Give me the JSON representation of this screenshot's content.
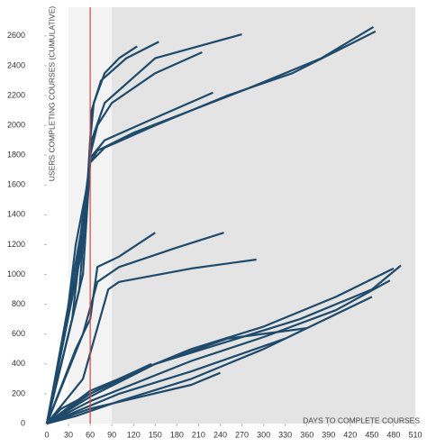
{
  "chart_data": {
    "type": "line",
    "y_label": "USERS COMPLETING COURSES (CUMULATIVE)",
    "x_label": "DAYS TO COMPLETE COURSES",
    "xlim": [
      0,
      510
    ],
    "ylim": [
      0,
      2780
    ],
    "xticks": [
      0,
      30,
      60,
      90,
      120,
      150,
      180,
      210,
      240,
      270,
      300,
      330,
      360,
      390,
      420,
      450,
      480,
      510
    ],
    "yticks": [
      0,
      200,
      400,
      600,
      800,
      1000,
      1200,
      1400,
      1600,
      1800,
      2000,
      2200,
      2400,
      2600
    ],
    "shaded_regions": [
      {
        "xlim": [
          30,
          90
        ],
        "color": "#f3f3f3"
      },
      {
        "xlim": [
          90,
          510
        ],
        "color": "#e4e4e4"
      }
    ],
    "reference_line": {
      "x": 60,
      "color": "#d9463b"
    },
    "line_color": "#1e4a6b",
    "series": [
      {
        "x": [
          0,
          30,
          55,
          60,
          65,
          80,
          100,
          125
        ],
        "values": [
          0,
          800,
          1500,
          1900,
          2150,
          2350,
          2450,
          2530
        ]
      },
      {
        "x": [
          0,
          40,
          58,
          62,
          75,
          110,
          155
        ],
        "values": [
          0,
          1000,
          1700,
          2100,
          2300,
          2450,
          2560
        ]
      },
      {
        "x": [
          0,
          45,
          60,
          70,
          90,
          150,
          215
        ],
        "values": [
          0,
          900,
          1800,
          2000,
          2150,
          2350,
          2490
        ]
      },
      {
        "x": [
          0,
          50,
          62,
          80,
          150,
          270
        ],
        "values": [
          0,
          1200,
          1900,
          2150,
          2450,
          2610
        ]
      },
      {
        "x": [
          0,
          35,
          60,
          70,
          120,
          200,
          280,
          380,
          452
        ],
        "values": [
          0,
          700,
          1750,
          1830,
          1950,
          2100,
          2250,
          2450,
          2660
        ]
      },
      {
        "x": [
          0,
          50,
          60,
          80,
          150,
          250,
          340,
          455
        ],
        "values": [
          0,
          1000,
          1750,
          1850,
          2000,
          2200,
          2350,
          2630
        ]
      },
      {
        "x": [
          0,
          45,
          60,
          80,
          150,
          230
        ],
        "values": [
          0,
          1100,
          1780,
          1900,
          2050,
          2220
        ]
      },
      {
        "x": [
          0,
          40,
          60,
          70,
          100,
          150
        ],
        "values": [
          0,
          500,
          700,
          1050,
          1120,
          1280
        ]
      },
      {
        "x": [
          0,
          50,
          70,
          100,
          180,
          245
        ],
        "values": [
          0,
          600,
          950,
          1050,
          1180,
          1280
        ]
      },
      {
        "x": [
          0,
          50,
          85,
          100,
          200,
          290
        ],
        "values": [
          0,
          300,
          900,
          950,
          1040,
          1100
        ]
      },
      {
        "x": [
          0,
          20,
          60,
          150,
          250,
          350,
          450,
          490
        ],
        "values": [
          0,
          100,
          200,
          400,
          550,
          700,
          900,
          1060
        ]
      },
      {
        "x": [
          0,
          60,
          200,
          300,
          400,
          480
        ],
        "values": [
          0,
          220,
          500,
          650,
          850,
          1040
        ]
      },
      {
        "x": [
          0,
          60,
          200,
          300,
          400,
          475
        ],
        "values": [
          0,
          150,
          420,
          580,
          760,
          960
        ]
      },
      {
        "x": [
          0,
          60,
          150,
          250,
          360
        ],
        "values": [
          0,
          180,
          400,
          570,
          640
        ]
      },
      {
        "x": [
          0,
          60,
          100,
          145
        ],
        "values": [
          0,
          200,
          300,
          400
        ]
      },
      {
        "x": [
          0,
          60,
          200,
          240
        ],
        "values": [
          0,
          100,
          260,
          340
        ]
      },
      {
        "x": [
          0,
          40,
          100,
          200,
          300,
          450
        ],
        "values": [
          0,
          50,
          150,
          300,
          500,
          850
        ]
      },
      {
        "x": [
          0,
          100,
          200,
          330
        ],
        "values": [
          0,
          200,
          350,
          570
        ]
      },
      {
        "x": [
          0,
          25,
          40,
          50,
          58
        ],
        "values": [
          0,
          600,
          1200,
          1450,
          1650
        ]
      }
    ]
  }
}
